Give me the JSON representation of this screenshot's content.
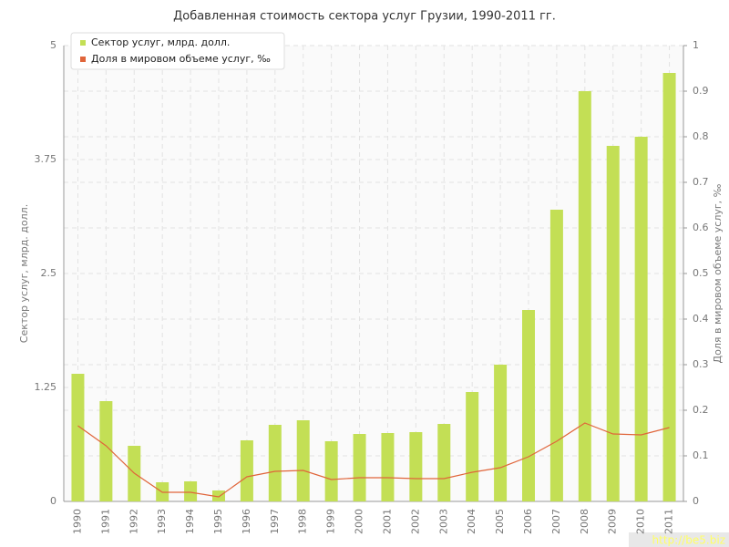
{
  "chart_data": {
    "type": "bar",
    "title": "Добавленная стоимость сектора услуг Грузии, 1990-2011 гг.",
    "y_label": "Сектор услуг, млрд. долл.",
    "y2_label": "Доля в мировом объеме услуг, ‰",
    "watermark": "http://be5.biz",
    "categories": [
      "1990",
      "1991",
      "1992",
      "1993",
      "1994",
      "1995",
      "1996",
      "1997",
      "1998",
      "1999",
      "2000",
      "2001",
      "2002",
      "2003",
      "2004",
      "2005",
      "2006",
      "2007",
      "2008",
      "2009",
      "2010",
      "2011"
    ],
    "series": [
      {
        "name": "Сектор услуг, млрд. долл.",
        "type": "bar",
        "color": "#c3df55",
        "values": [
          1.4,
          1.1,
          0.61,
          0.21,
          0.22,
          0.12,
          0.67,
          0.84,
          0.89,
          0.66,
          0.74,
          0.75,
          0.76,
          0.85,
          1.2,
          1.5,
          2.1,
          3.2,
          4.5,
          3.9,
          4.0,
          4.7
        ]
      },
      {
        "name": "Доля в мировом объеме услуг, ‰",
        "type": "line",
        "axis": "y2",
        "color": "#e0653a",
        "values": [
          0.166,
          0.122,
          0.062,
          0.02,
          0.02,
          0.01,
          0.054,
          0.066,
          0.068,
          0.048,
          0.052,
          0.052,
          0.05,
          0.05,
          0.064,
          0.074,
          0.098,
          0.132,
          0.172,
          0.148,
          0.146,
          0.162
        ]
      }
    ],
    "ylim": [
      0,
      5
    ],
    "yticks": [
      0,
      1.25,
      2.5,
      3.75,
      5
    ],
    "y2lim": [
      0,
      1
    ],
    "y2ticks": [
      0,
      0.1,
      0.2,
      0.3,
      0.4,
      0.5,
      0.6,
      0.7,
      0.8,
      0.9,
      1
    ],
    "grid": true,
    "legend": "top-left"
  }
}
